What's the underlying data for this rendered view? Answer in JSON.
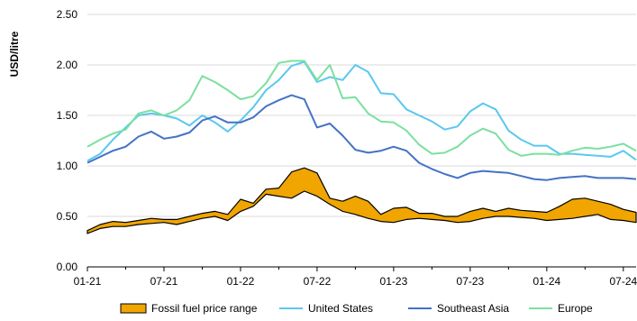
{
  "chart_data": {
    "type": "line",
    "ylabel": "USD/litre",
    "xlabel": "",
    "title": "",
    "ylim": [
      0,
      2.5
    ],
    "yticks": [
      "0.00",
      "0.50",
      "1.00",
      "1.50",
      "2.00",
      "2.50"
    ],
    "xticks": [
      "01-21",
      "07-21",
      "01-22",
      "07-22",
      "01-23",
      "07-23",
      "01-24",
      "07-24"
    ],
    "grid": "horizontal",
    "legend_position": "bottom",
    "x": [
      "01-21",
      "02-21",
      "03-21",
      "04-21",
      "05-21",
      "06-21",
      "07-21",
      "08-21",
      "09-21",
      "10-21",
      "11-21",
      "12-21",
      "01-22",
      "02-22",
      "03-22",
      "04-22",
      "05-22",
      "06-22",
      "07-22",
      "08-22",
      "09-22",
      "10-22",
      "11-22",
      "12-22",
      "01-23",
      "02-23",
      "03-23",
      "04-23",
      "05-23",
      "06-23",
      "07-23",
      "08-23",
      "09-23",
      "10-23",
      "11-23",
      "12-23",
      "01-24",
      "02-24",
      "03-24",
      "04-24",
      "05-24",
      "06-24",
      "07-24",
      "08-24"
    ],
    "band": {
      "name": "Fossil fuel price range",
      "color": "#F0A500",
      "low": [
        0.33,
        0.38,
        0.4,
        0.4,
        0.42,
        0.43,
        0.44,
        0.42,
        0.45,
        0.48,
        0.5,
        0.46,
        0.55,
        0.6,
        0.72,
        0.7,
        0.68,
        0.75,
        0.7,
        0.62,
        0.55,
        0.52,
        0.48,
        0.45,
        0.44,
        0.47,
        0.48,
        0.47,
        0.46,
        0.44,
        0.45,
        0.48,
        0.5,
        0.5,
        0.49,
        0.48,
        0.46,
        0.47,
        0.48,
        0.5,
        0.52,
        0.47,
        0.46,
        0.44
      ],
      "high": [
        0.36,
        0.42,
        0.45,
        0.44,
        0.46,
        0.48,
        0.47,
        0.47,
        0.5,
        0.53,
        0.55,
        0.52,
        0.67,
        0.63,
        0.77,
        0.78,
        0.94,
        0.98,
        0.93,
        0.68,
        0.65,
        0.7,
        0.65,
        0.52,
        0.58,
        0.59,
        0.53,
        0.53,
        0.5,
        0.5,
        0.55,
        0.58,
        0.55,
        0.58,
        0.56,
        0.55,
        0.54,
        0.6,
        0.67,
        0.68,
        0.65,
        0.62,
        0.57,
        0.54
      ]
    },
    "series": [
      {
        "name": "United States",
        "color": "#5BC8EE",
        "values": [
          1.05,
          1.12,
          1.26,
          1.38,
          1.5,
          1.52,
          1.5,
          1.47,
          1.4,
          1.5,
          1.43,
          1.34,
          1.45,
          1.58,
          1.75,
          1.85,
          1.99,
          2.03,
          1.83,
          1.88,
          1.85,
          2.0,
          1.93,
          1.72,
          1.71,
          1.56,
          1.5,
          1.44,
          1.36,
          1.39,
          1.54,
          1.62,
          1.56,
          1.35,
          1.26,
          1.2,
          1.2,
          1.12,
          1.12,
          1.11,
          1.1,
          1.09,
          1.15,
          1.06
        ]
      },
      {
        "name": "Southeast Asia",
        "color": "#4472C4",
        "values": [
          1.03,
          1.09,
          1.15,
          1.19,
          1.29,
          1.34,
          1.27,
          1.29,
          1.33,
          1.45,
          1.49,
          1.43,
          1.43,
          1.48,
          1.59,
          1.65,
          1.7,
          1.66,
          1.38,
          1.42,
          1.3,
          1.16,
          1.13,
          1.15,
          1.19,
          1.15,
          1.03,
          0.97,
          0.92,
          0.88,
          0.93,
          0.95,
          0.94,
          0.93,
          0.9,
          0.87,
          0.86,
          0.88,
          0.89,
          0.9,
          0.88,
          0.88,
          0.88,
          0.87
        ]
      },
      {
        "name": "Europe",
        "color": "#7BE0A0",
        "values": [
          1.19,
          1.26,
          1.32,
          1.36,
          1.52,
          1.55,
          1.5,
          1.55,
          1.65,
          1.89,
          1.83,
          1.75,
          1.66,
          1.69,
          1.82,
          2.02,
          2.04,
          2.04,
          1.85,
          2.0,
          1.67,
          1.68,
          1.52,
          1.44,
          1.43,
          1.35,
          1.21,
          1.12,
          1.13,
          1.19,
          1.3,
          1.37,
          1.32,
          1.16,
          1.1,
          1.12,
          1.12,
          1.11,
          1.15,
          1.18,
          1.17,
          1.19,
          1.22,
          1.15
        ]
      }
    ]
  }
}
